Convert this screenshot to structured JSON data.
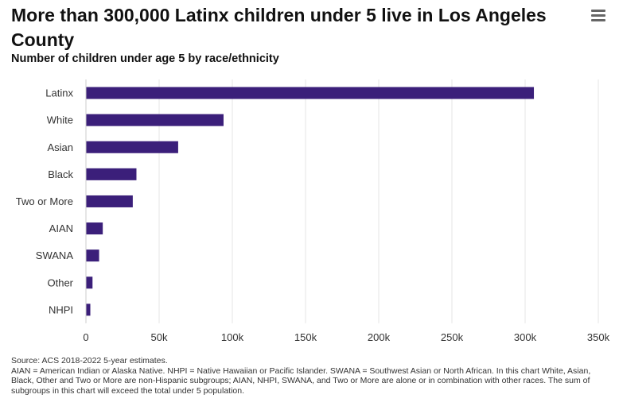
{
  "header": {
    "title": "More than 300,000 Latinx children under 5 live in Los Angeles County",
    "subtitle": "Number of children under age 5 by race/ethnicity",
    "menu_icon": "hamburger-menu-icon"
  },
  "footer": {
    "source": "Source: ACS 2018-2022 5-year estimates.",
    "note": "AIAN = American Indian or Alaska Native. NHPI = Native Hawaiian or Pacific Islander. SWANA = Southwest Asian or North African. In this chart White, Asian, Black, Other and Two or More are non-Hispanic subgroups; AIAN, NHPI, SWANA, and Two or More are alone or in combination with other races. The sum of subgroups in this chart will exceed the total under 5 population."
  },
  "chart_data": {
    "type": "bar",
    "orientation": "horizontal",
    "title": "More than 300,000 Latinx children under 5 live in Los Angeles County",
    "subtitle": "Number of children under age 5 by race/ethnicity",
    "categories": [
      "Latinx",
      "White",
      "Asian",
      "Black",
      "Two or More",
      "AIAN",
      "SWANA",
      "Other",
      "NHPI"
    ],
    "values": [
      306000,
      94000,
      63000,
      34500,
      32000,
      11500,
      9000,
      4500,
      3000
    ],
    "xlim": [
      0,
      350000
    ],
    "ticks": [
      0,
      50000,
      100000,
      150000,
      200000,
      250000,
      300000,
      350000
    ],
    "tick_labels": [
      "0",
      "50k",
      "100k",
      "150k",
      "200k",
      "250k",
      "300k",
      "350k"
    ],
    "xlabel": "",
    "ylabel": "",
    "grid": "vertical",
    "legend": "none",
    "bar_color": "#3b1f7a",
    "grid_color": "#e6e6e6"
  }
}
